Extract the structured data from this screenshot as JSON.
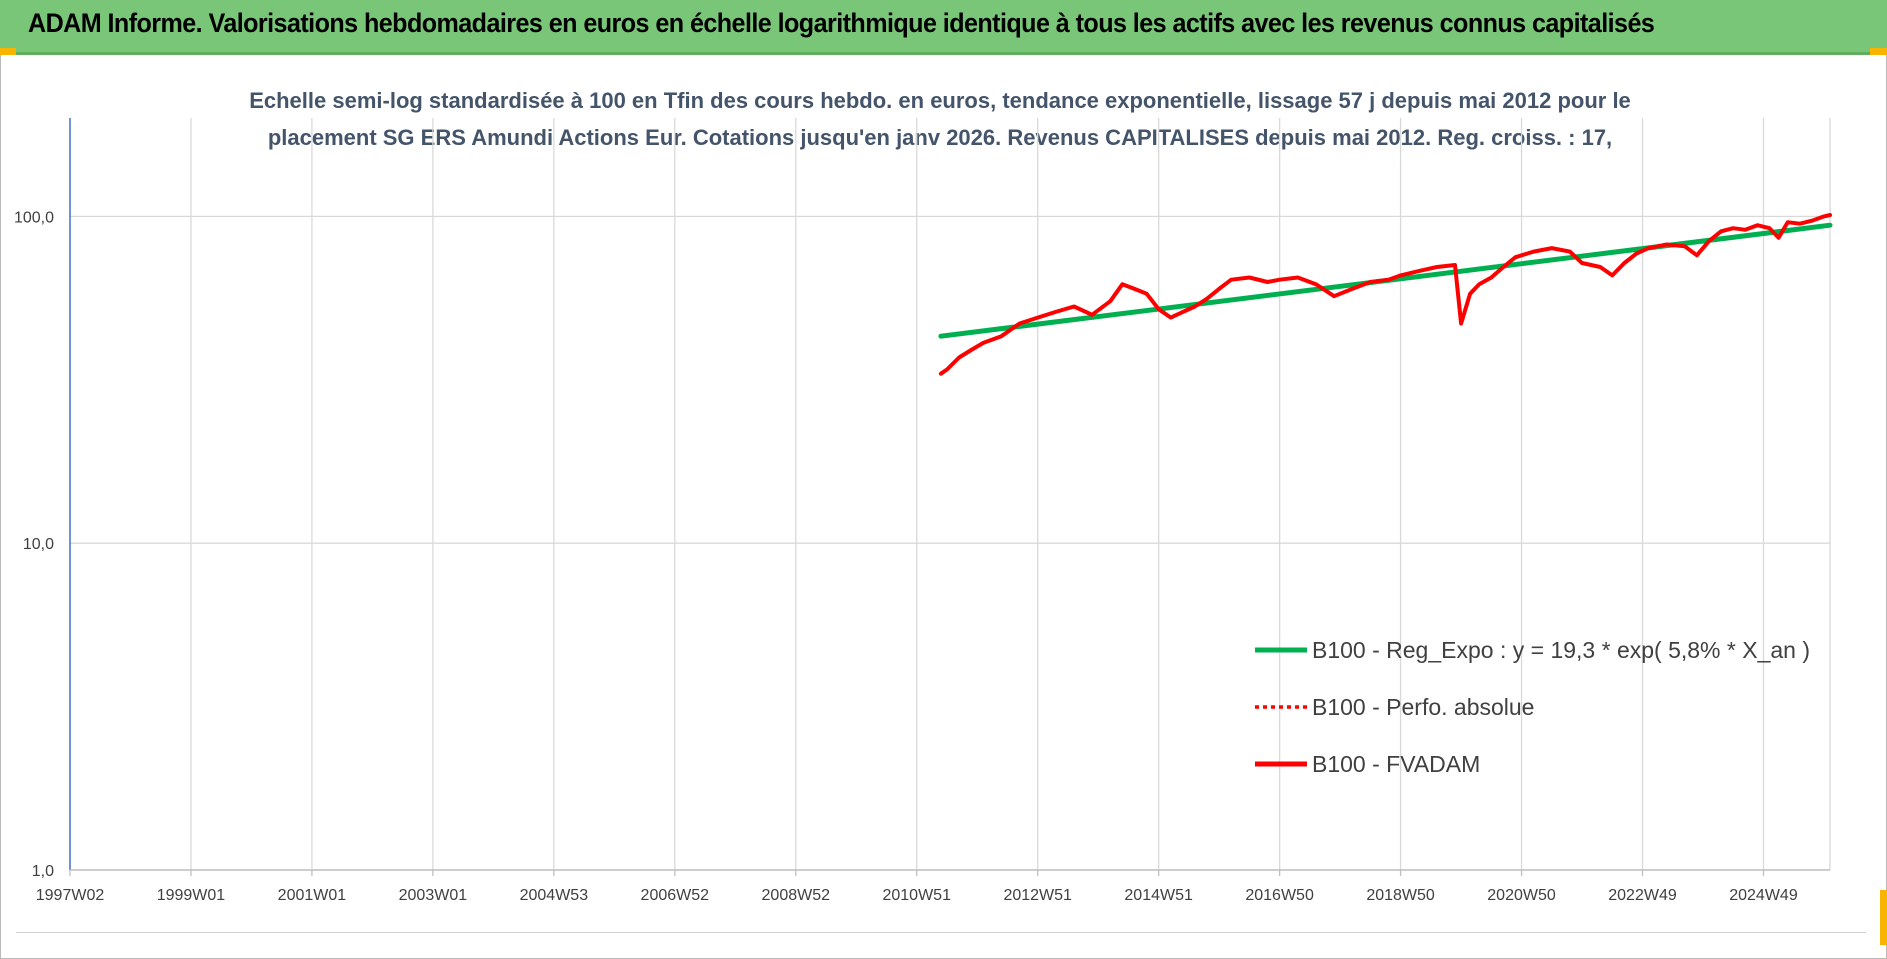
{
  "header": {
    "title": "ADAM Informe. Valorisations hebdomadaires en euros en échelle logarithmique identique à tous les actifs avec les revenus connus capitalisés",
    "accent_color": "#7ac678"
  },
  "chart_data": {
    "type": "line",
    "title_line1": "Echelle semi-log standardisée à 100 en Tfin des cours hebdo. en euros, tendance exponentielle, lissage 57 j depuis mai 2012 pour le",
    "title_line2": "placement SG ERS Amundi Actions Eur. Cotations jusqu'en janv 2026. Revenus CAPITALISES depuis mai 2012. Reg. croiss. : 17,",
    "y_scale": "log",
    "ylim": [
      1,
      200
    ],
    "y_ticks": [
      {
        "value": 1,
        "label": "1,0"
      },
      {
        "value": 10,
        "label": "10,0"
      },
      {
        "value": 100,
        "label": "100,0"
      }
    ],
    "x_range": [
      1997.0,
      2026.1
    ],
    "x_ticks": [
      {
        "year": 1997.0,
        "label": "1997W02"
      },
      {
        "year": 1999.0,
        "label": "1999W01"
      },
      {
        "year": 2001.0,
        "label": "2001W01"
      },
      {
        "year": 2003.0,
        "label": "2003W01"
      },
      {
        "year": 2005.0,
        "label": "2004W53"
      },
      {
        "year": 2007.0,
        "label": "2006W52"
      },
      {
        "year": 2009.0,
        "label": "2008W52"
      },
      {
        "year": 2011.0,
        "label": "2010W51"
      },
      {
        "year": 2013.0,
        "label": "2012W51"
      },
      {
        "year": 2015.0,
        "label": "2014W51"
      },
      {
        "year": 2017.0,
        "label": "2016W50"
      },
      {
        "year": 2019.0,
        "label": "2018W50"
      },
      {
        "year": 2021.0,
        "label": "2020W50"
      },
      {
        "year": 2023.0,
        "label": "2022W49"
      },
      {
        "year": 2025.0,
        "label": "2024W49"
      }
    ],
    "grid": true,
    "legend_position": "bottom-right",
    "series": [
      {
        "name": "B100 - Reg_Expo : y = 19,3 * exp( 5,8% *  X_an )",
        "color": "#00b050",
        "style": "solid",
        "x": [
          2011.4,
          2026.1
        ],
        "y": [
          43.0,
          94.0
        ]
      },
      {
        "name": "B100 - Perfo. absolue",
        "color": "#ff0000",
        "style": "dotted",
        "x": [],
        "y": []
      },
      {
        "name": "B100 - FVADAM",
        "color": "#ff0000",
        "style": "solid",
        "x": [
          2011.4,
          2011.5,
          2011.7,
          2011.9,
          2012.1,
          2012.4,
          2012.7,
          2013.0,
          2013.3,
          2013.6,
          2013.9,
          2014.2,
          2014.4,
          2014.6,
          2014.8,
          2015.0,
          2015.2,
          2015.4,
          2015.6,
          2015.8,
          2016.0,
          2016.2,
          2016.5,
          2016.8,
          2017.0,
          2017.3,
          2017.6,
          2017.9,
          2018.2,
          2018.5,
          2018.8,
          2019.0,
          2019.3,
          2019.6,
          2019.9,
          2020.0,
          2020.15,
          2020.3,
          2020.5,
          2020.7,
          2020.9,
          2021.2,
          2021.5,
          2021.8,
          2022.0,
          2022.3,
          2022.5,
          2022.7,
          2022.9,
          2023.1,
          2023.4,
          2023.7,
          2023.9,
          2024.1,
          2024.3,
          2024.5,
          2024.7,
          2024.9,
          2025.1,
          2025.25,
          2025.4,
          2025.6,
          2025.8,
          2026.0,
          2026.1
        ],
        "y": [
          33,
          34,
          37,
          39,
          41,
          43,
          47,
          49,
          51,
          53,
          50,
          55,
          62,
          60,
          58,
          52,
          49,
          51,
          53,
          56,
          60,
          64,
          65,
          63,
          64,
          65,
          62,
          57,
          60,
          63,
          64,
          66,
          68,
          70,
          71,
          47,
          58,
          62,
          65,
          70,
          75,
          78,
          80,
          78,
          72,
          70,
          66,
          72,
          77,
          80,
          82,
          81,
          76,
          84,
          90,
          92,
          91,
          94,
          92,
          86,
          96,
          95,
          97,
          100,
          101
        ]
      }
    ]
  }
}
